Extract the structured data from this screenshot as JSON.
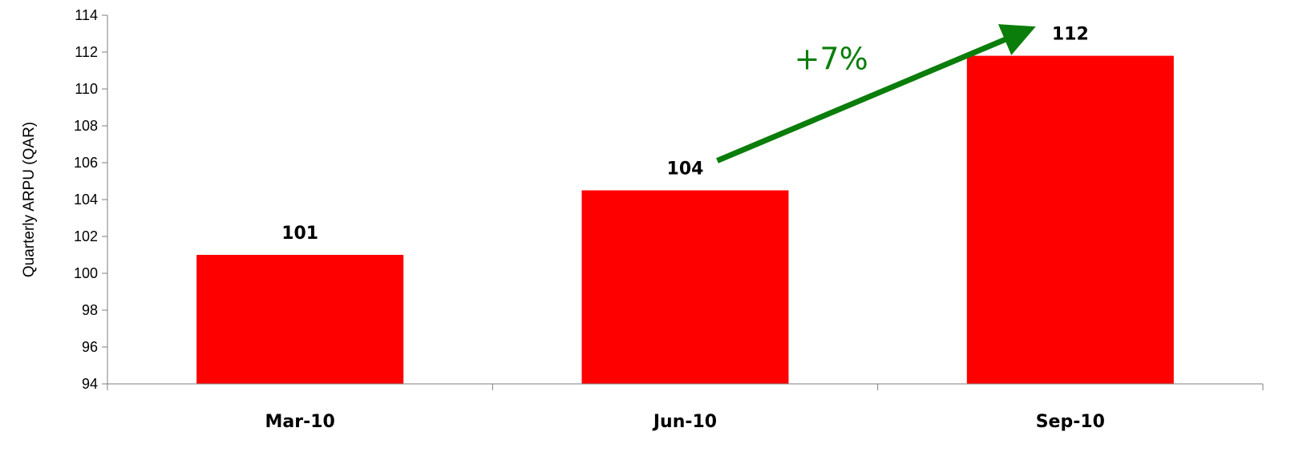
{
  "chart_data": {
    "type": "bar",
    "categories": [
      "Mar-10",
      "Jun-10",
      "Sep-10"
    ],
    "values": [
      101.0,
      104.5,
      111.8
    ],
    "data_labels": [
      "101",
      "104",
      "112"
    ],
    "ylabel": "Quarterly ARPU (QAR)",
    "ylim": [
      94,
      114
    ],
    "yticks": [
      94,
      96,
      98,
      100,
      102,
      104,
      106,
      108,
      110,
      112,
      114
    ],
    "grid": false,
    "legend": "none",
    "bar_color": "#ff0000",
    "annotation": {
      "text": "+7%",
      "from_category": "Jun-10",
      "to_category": "Sep-10",
      "color": "#0a7d0a"
    }
  }
}
